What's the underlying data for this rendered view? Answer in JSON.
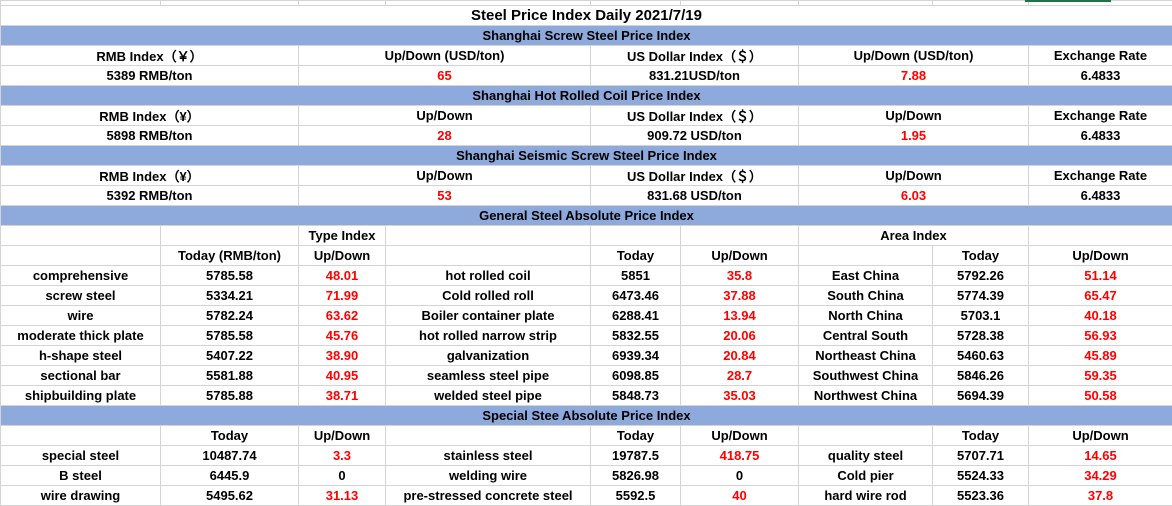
{
  "title": "Steel Price Index Daily  2021/7/19",
  "sections": [
    {
      "title": "Shanghai Screw Steel Price Index",
      "headers": [
        "RMB Index（￥）",
        "Up/Down (USD/ton)",
        "US Dollar Index（＄）",
        "Up/Down (USD/ton)",
        "Exchange Rate"
      ],
      "values": [
        "5389 RMB/ton",
        "65",
        "831.21USD/ton",
        "7.88",
        "6.4833"
      ]
    },
    {
      "title": "Shanghai Hot Rolled Coil Price Index",
      "headers": [
        "RMB Index（¥）",
        "Up/Down",
        "US Dollar Index（＄）",
        "Up/Down",
        "Exchange Rate"
      ],
      "values": [
        "5898 RMB/ton",
        "28",
        "909.72 USD/ton",
        "1.95",
        "6.4833"
      ]
    },
    {
      "title": "Shanghai Seismic Screw Steel Price Index",
      "headers": [
        "RMB Index（¥）",
        "Up/Down",
        "US Dollar Index（＄）",
        "Up/Down",
        "Exchange Rate"
      ],
      "values": [
        "5392 RMB/ton",
        "53",
        "831.68 USD/ton",
        "6.03",
        "6.4833"
      ]
    }
  ],
  "general": {
    "title": "General Steel Absolute Price Index",
    "type_index": "Type Index",
    "area_index": "Area Index",
    "headers": [
      "Today (RMB/ton)",
      "Up/Down",
      "Today",
      "Up/Down",
      "Today",
      "Up/Down"
    ],
    "rows": [
      [
        "comprehensive",
        "5785.58",
        "48.01",
        "hot rolled coil",
        "5851",
        "35.8",
        "East China",
        "5792.26",
        "51.14"
      ],
      [
        "screw steel",
        "5334.21",
        "71.99",
        "Cold rolled roll",
        "6473.46",
        "37.88",
        "South China",
        "5774.39",
        "65.47"
      ],
      [
        "wire",
        "5782.24",
        "63.62",
        "Boiler container plate",
        "6288.41",
        "13.94",
        "North China",
        "5703.1",
        "40.18"
      ],
      [
        "moderate thick plate",
        "5785.58",
        "45.76",
        "hot rolled narrow strip",
        "5832.55",
        "20.06",
        "Central South",
        "5728.38",
        "56.93"
      ],
      [
        "h-shape steel",
        "5407.22",
        "38.90",
        "galvanization",
        "6939.34",
        "20.84",
        "Northeast China",
        "5460.63",
        "45.89"
      ],
      [
        "sectional bar",
        "5581.88",
        "40.95",
        "seamless steel pipe",
        "6098.85",
        "28.7",
        "Southwest China",
        "5846.26",
        "59.35"
      ],
      [
        "shipbuilding plate",
        "5785.88",
        "38.71",
        "welded steel pipe",
        "5848.73",
        "35.03",
        "Northwest China",
        "5694.39",
        "50.58"
      ]
    ]
  },
  "special": {
    "title": "Special Stee Absolute Price Index",
    "headers": [
      "Today",
      "Up/Down",
      "Today",
      "Up/Down",
      "Today",
      "Up/Down"
    ],
    "rows": [
      [
        "special steel",
        "10487.74",
        "3.3",
        "stainless steel",
        "19787.5",
        "418.75",
        "quality steel",
        "5707.71",
        "14.65"
      ],
      [
        "B steel",
        "6445.9",
        "0",
        "welding wire",
        "5826.98",
        "0",
        "Cold pier",
        "5524.33",
        "34.29"
      ],
      [
        "wire drawing",
        "5495.62",
        "31.13",
        "pre-stressed concrete steel",
        "5592.5",
        "40",
        "hard wire rod",
        "5523.36",
        "37.8"
      ]
    ]
  }
}
